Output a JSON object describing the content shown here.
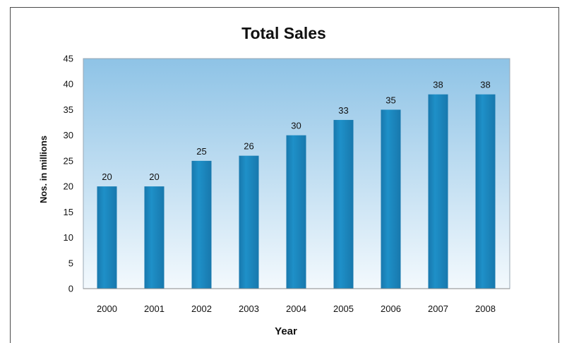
{
  "chart_data": {
    "type": "bar",
    "title": "Total Sales",
    "xlabel": "Year",
    "ylabel": "Nos. in millions",
    "categories": [
      "2000",
      "2001",
      "2002",
      "2003",
      "2004",
      "2005",
      "2006",
      "2007",
      "2008"
    ],
    "values": [
      20,
      20,
      25,
      26,
      30,
      33,
      35,
      38,
      38
    ],
    "value_labels": [
      "20",
      "20",
      "25",
      "26",
      "30",
      "33",
      "35",
      "38",
      "38"
    ],
    "ylim": [
      0,
      45
    ],
    "yticks": [
      0,
      5,
      10,
      15,
      20,
      25,
      30,
      35,
      40,
      45
    ],
    "grid": false,
    "legend": "none",
    "colors": {
      "bar": "#1e90c8",
      "bar_dark": "#1878ad",
      "plot_bg_top": "#8ec3e6",
      "plot_bg_bottom": "#f3f9fd",
      "plot_border": "#9aa7b3"
    }
  }
}
